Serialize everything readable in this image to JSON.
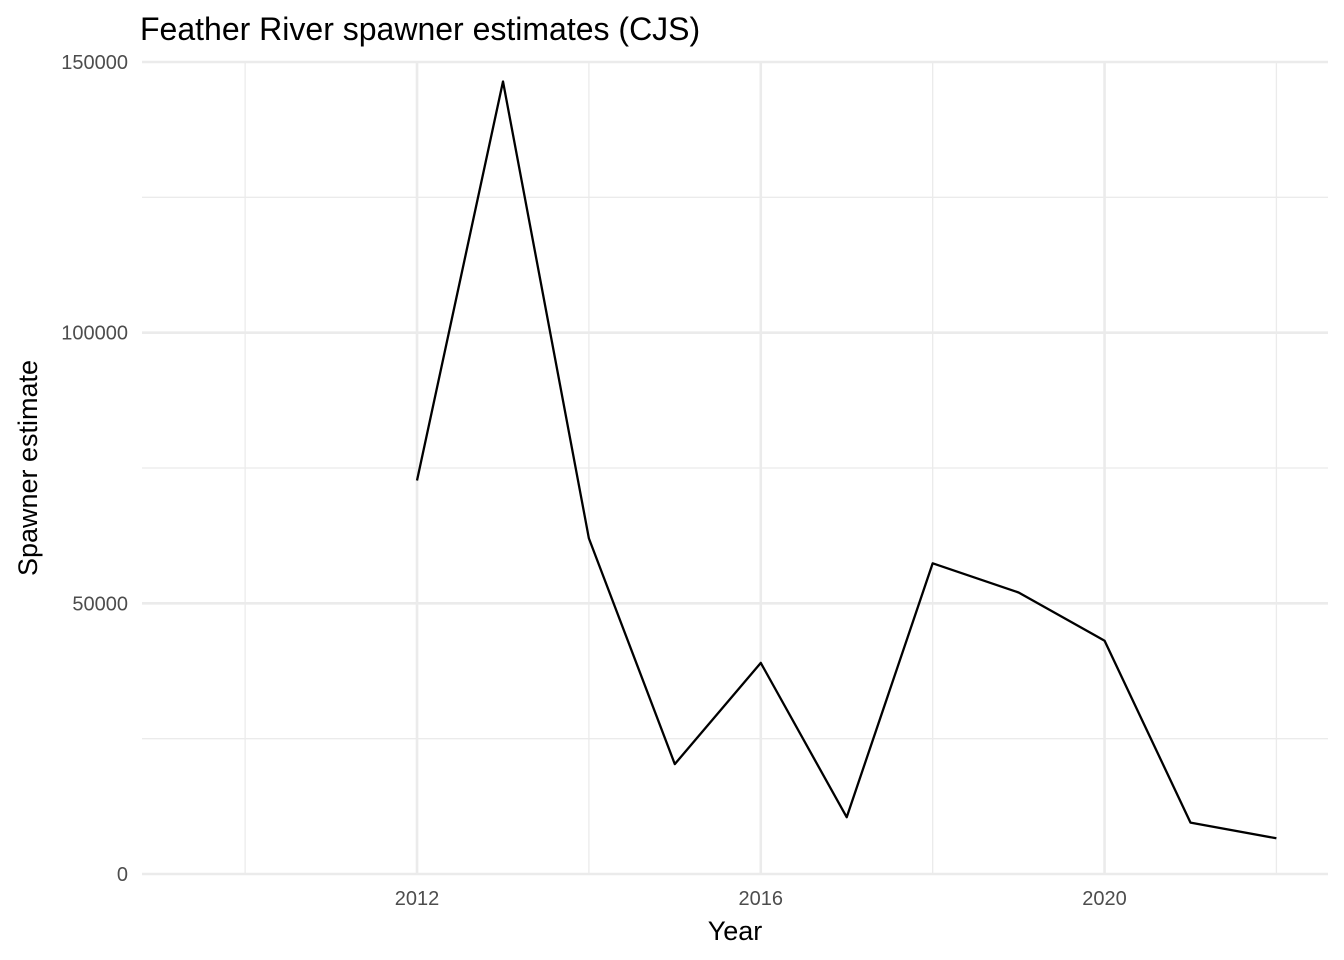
{
  "chart_data": {
    "type": "line",
    "title": "Feather River spawner estimates (CJS)",
    "xlabel": "Year",
    "ylabel": "Spawner estimate",
    "xlim": [
      2008.8,
      2022.6
    ],
    "ylim": [
      0,
      150000
    ],
    "x_ticks": [
      2012,
      2016,
      2020
    ],
    "x_tick_labels": [
      "2012",
      "2016",
      "2020"
    ],
    "x_minor_ticks": [
      2010,
      2014,
      2018,
      2022
    ],
    "y_ticks": [
      0,
      50000,
      100000,
      150000
    ],
    "y_tick_labels": [
      "0",
      "50000",
      "100000",
      "150000"
    ],
    "y_minor_ticks": [
      25000,
      75000,
      125000
    ],
    "grid": true,
    "legend": "none",
    "series": [
      {
        "color": "#000000",
        "x": [
          2012,
          2013,
          2014,
          2015,
          2016,
          2017,
          2018,
          2019,
          2020,
          2021,
          2022
        ],
        "y": [
          72700,
          146400,
          62000,
          20300,
          39000,
          10500,
          57400,
          52000,
          43100,
          9500,
          6600
        ]
      }
    ]
  }
}
